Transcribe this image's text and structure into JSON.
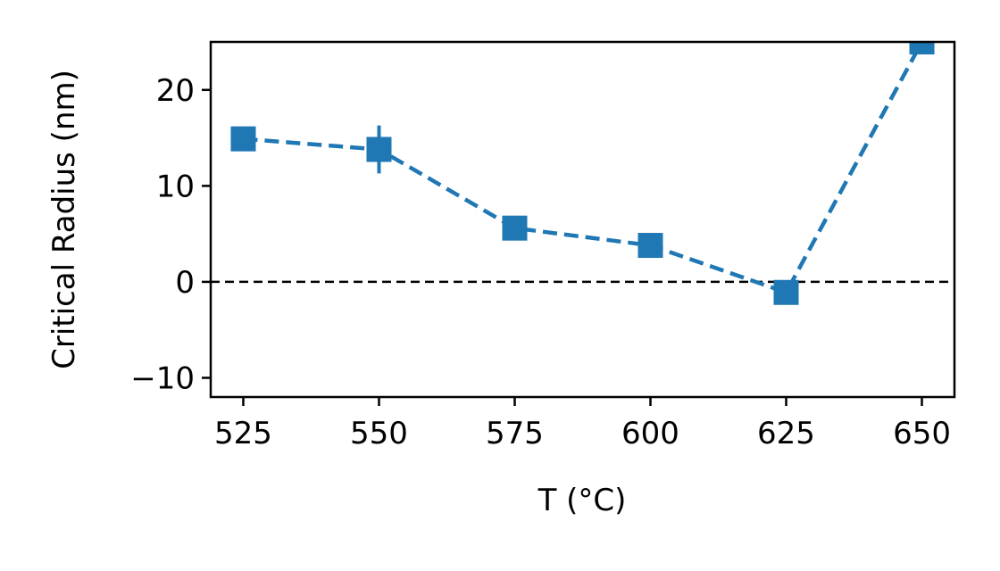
{
  "chart_data": {
    "type": "line",
    "title": "",
    "xlabel": "T (°C)",
    "ylabel": "Critical Radius (nm)",
    "xlim": [
      519,
      656
    ],
    "ylim": [
      -12,
      25
    ],
    "xticks": [
      525,
      550,
      575,
      600,
      625,
      650
    ],
    "xtick_labels": [
      "525",
      "550",
      "575",
      "600",
      "625",
      "650"
    ],
    "yticks": [
      -10,
      0,
      10,
      20
    ],
    "ytick_labels": [
      "−10",
      "0",
      "10",
      "20"
    ],
    "reference_line_y": 0,
    "grid": false,
    "series": [
      {
        "color": "#1f77b4",
        "marker": "square",
        "line_style": "dashed",
        "x": [
          525,
          550,
          575,
          600,
          625,
          650
        ],
        "y": [
          14.9,
          13.8,
          5.6,
          3.8,
          -1.1,
          25.0
        ],
        "y_error": [
          0.4,
          2.5,
          0.4,
          0.3,
          0.3,
          0.3
        ]
      }
    ]
  }
}
